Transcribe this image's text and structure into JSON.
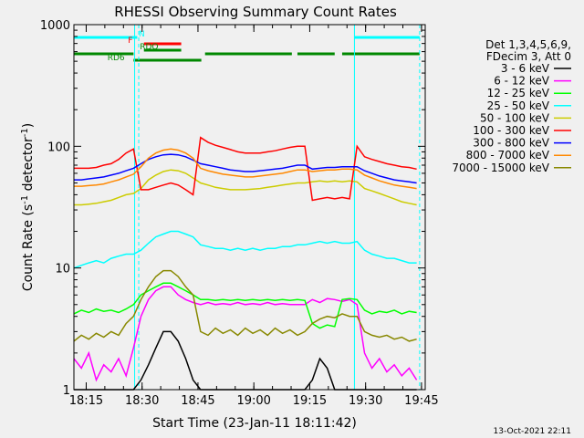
{
  "chart_data": {
    "type": "line",
    "title": "RHESSI Observing Summary Count Rates",
    "xlabel": "Start Time (23-Jan-11 18:11:42)",
    "ylabel_main": "Count Rate (s",
    "ylabel_mid": " detector",
    "ylabel_end": ")",
    "ylabel_sup": "-1",
    "y_scale": "log",
    "ylim": [
      1,
      1000
    ],
    "xlim_minutes": [
      0,
      94.3
    ],
    "x_ticks": [
      {
        "t": 3.3,
        "label": "18:15"
      },
      {
        "t": 18.3,
        "label": "18:30"
      },
      {
        "t": 33.3,
        "label": "18:45"
      },
      {
        "t": 48.3,
        "label": "19:00"
      },
      {
        "t": 63.3,
        "label": "19:15"
      },
      {
        "t": 78.3,
        "label": "19:30"
      },
      {
        "t": 93.3,
        "label": "19:45"
      }
    ],
    "y_ticks": [
      {
        "v": 1,
        "label": "1"
      },
      {
        "v": 10,
        "label": "10"
      },
      {
        "v": 100,
        "label": "100"
      },
      {
        "v": 1000,
        "label": "1000"
      }
    ],
    "legend_header": [
      "Det 1,3,4,5,6,9,",
      "FDecim 3, Att 0"
    ],
    "legend_placement": "right",
    "series": [
      {
        "name": "3 - 6 keV",
        "color": "#000000",
        "x": [
          0,
          2,
          4,
          6,
          8,
          10,
          12,
          14,
          16,
          18,
          20,
          22,
          24,
          26,
          28,
          30,
          32,
          34,
          36,
          38,
          40,
          42,
          44,
          46,
          48,
          50,
          52,
          54,
          56,
          58,
          60,
          62,
          64,
          66,
          68,
          70,
          72,
          74,
          76,
          78,
          80,
          82,
          84,
          86,
          88,
          90,
          92
        ],
        "y": [
          1,
          1,
          1,
          1,
          1,
          1,
          1,
          1,
          1,
          1.2,
          1.6,
          2.2,
          3.0,
          3.0,
          2.5,
          1.8,
          1.2,
          1.0,
          1.0,
          1.0,
          1.0,
          1.0,
          1.0,
          1.0,
          1.0,
          1.0,
          1.0,
          1.0,
          1.0,
          1.0,
          1.0,
          1.0,
          1.2,
          1.8,
          1.5,
          1.0,
          1.0,
          1.0,
          1.0,
          1.0,
          1.0,
          1.0,
          1.0,
          1.0,
          1.0,
          1.0,
          1.0
        ]
      },
      {
        "name": "6 - 12 keV",
        "color": "#ff00ff",
        "x": [
          0,
          2,
          4,
          6,
          8,
          10,
          12,
          14,
          16,
          18,
          20,
          22,
          24,
          26,
          28,
          30,
          32,
          34,
          36,
          38,
          40,
          42,
          44,
          46,
          48,
          50,
          52,
          54,
          56,
          58,
          60,
          62,
          64,
          66,
          68,
          70,
          72,
          74,
          76,
          78,
          80,
          82,
          84,
          86,
          88,
          90,
          92
        ],
        "y": [
          1.8,
          1.5,
          2.0,
          1.2,
          1.6,
          1.4,
          1.8,
          1.3,
          2.2,
          4.0,
          5.5,
          6.5,
          7.0,
          7.0,
          6.0,
          5.5,
          5.2,
          5.0,
          5.2,
          5.0,
          5.1,
          5.0,
          5.2,
          5.0,
          5.1,
          5.0,
          5.2,
          5.0,
          5.1,
          5.0,
          5.0,
          5.0,
          5.5,
          5.2,
          5.6,
          5.5,
          5.3,
          5.5,
          5.0,
          2.0,
          1.5,
          1.8,
          1.4,
          1.6,
          1.3,
          1.5,
          1.2
        ]
      },
      {
        "name": "12 - 25 keV",
        "color": "#00ff00",
        "x": [
          0,
          2,
          4,
          6,
          8,
          10,
          12,
          14,
          16,
          18,
          20,
          22,
          24,
          26,
          28,
          30,
          32,
          34,
          36,
          38,
          40,
          42,
          44,
          46,
          48,
          50,
          52,
          54,
          56,
          58,
          60,
          62,
          64,
          66,
          68,
          70,
          72,
          74,
          76,
          78,
          80,
          82,
          84,
          86,
          88,
          90,
          92
        ],
        "y": [
          4.2,
          4.5,
          4.3,
          4.6,
          4.4,
          4.5,
          4.3,
          4.6,
          5.0,
          6.0,
          6.5,
          7.0,
          7.5,
          7.5,
          7.0,
          6.5,
          6.0,
          5.5,
          5.5,
          5.4,
          5.5,
          5.4,
          5.5,
          5.4,
          5.5,
          5.4,
          5.5,
          5.4,
          5.5,
          5.4,
          5.5,
          5.4,
          3.5,
          3.2,
          3.4,
          3.3,
          5.5,
          5.6,
          5.5,
          4.5,
          4.2,
          4.4,
          4.3,
          4.5,
          4.2,
          4.4,
          4.3
        ]
      },
      {
        "name": "25 - 50 keV",
        "color": "#00ffff",
        "x": [
          0,
          2,
          4,
          6,
          8,
          10,
          12,
          14,
          16,
          18,
          20,
          22,
          24,
          26,
          28,
          30,
          32,
          34,
          36,
          38,
          40,
          42,
          44,
          46,
          48,
          50,
          52,
          54,
          56,
          58,
          60,
          62,
          64,
          66,
          68,
          70,
          72,
          74,
          76,
          78,
          80,
          82,
          84,
          86,
          88,
          90,
          92
        ],
        "y": [
          10,
          10.5,
          11,
          11.5,
          11,
          12,
          12.5,
          13,
          13,
          14,
          16,
          18,
          19,
          20,
          20,
          19,
          18,
          15.5,
          15,
          14.5,
          14.5,
          14,
          14.5,
          14,
          14.5,
          14,
          14.5,
          14.5,
          15,
          15,
          15.5,
          15.5,
          16,
          16.5,
          16,
          16.5,
          16,
          16,
          16.5,
          14,
          13,
          12.5,
          12,
          12,
          11.5,
          11,
          11
        ]
      },
      {
        "name": "50 - 100 keV",
        "color": "#cccc00",
        "x": [
          0,
          2,
          4,
          6,
          8,
          10,
          12,
          14,
          16,
          18,
          20,
          22,
          24,
          26,
          28,
          30,
          32,
          34,
          36,
          38,
          40,
          42,
          44,
          46,
          48,
          50,
          52,
          54,
          56,
          58,
          60,
          62,
          64,
          66,
          68,
          70,
          72,
          74,
          76,
          78,
          80,
          82,
          84,
          86,
          88,
          90,
          92
        ],
        "y": [
          33,
          33,
          33.5,
          34,
          35,
          36,
          38,
          40,
          41,
          45,
          53,
          58,
          62,
          64,
          63,
          60,
          55,
          50,
          48,
          46,
          45,
          44,
          44,
          44,
          44.5,
          45,
          46,
          47,
          48,
          49,
          50,
          50,
          51,
          52,
          51,
          52,
          51,
          52,
          51,
          45,
          43,
          41,
          39,
          37,
          35,
          34,
          33
        ]
      },
      {
        "name": "100 - 300 keV",
        "color": "#ff0000",
        "x": [
          0,
          2,
          4,
          6,
          8,
          10,
          12,
          14,
          16,
          18,
          20,
          22,
          24,
          26,
          28,
          30,
          32,
          34,
          36,
          38,
          40,
          42,
          44,
          46,
          48,
          50,
          52,
          54,
          56,
          58,
          60,
          62,
          64,
          66,
          68,
          70,
          72,
          74,
          76,
          78,
          80,
          82,
          84,
          86,
          88,
          90,
          92
        ],
        "y": [
          66,
          66,
          66,
          67,
          70,
          72,
          78,
          88,
          95,
          44,
          44,
          46,
          48,
          50,
          48,
          44,
          40,
          118,
          108,
          102,
          98,
          94,
          90,
          88,
          88,
          88,
          90,
          92,
          95,
          98,
          100,
          100,
          36,
          37,
          38,
          37,
          38,
          37,
          100,
          82,
          78,
          75,
          72,
          70,
          68,
          67,
          65
        ]
      },
      {
        "name": "300 - 800 keV",
        "color": "#0000ff",
        "x": [
          0,
          2,
          4,
          6,
          8,
          10,
          12,
          14,
          16,
          18,
          20,
          22,
          24,
          26,
          28,
          30,
          32,
          34,
          36,
          38,
          40,
          42,
          44,
          46,
          48,
          50,
          52,
          54,
          56,
          58,
          60,
          62,
          64,
          66,
          68,
          70,
          72,
          74,
          76,
          78,
          80,
          82,
          84,
          86,
          88,
          90,
          92
        ],
        "y": [
          53,
          53,
          54,
          55,
          56,
          58,
          60,
          63,
          66,
          72,
          78,
          82,
          85,
          86,
          85,
          82,
          77,
          72,
          70,
          68,
          66,
          64,
          63,
          62,
          62,
          63,
          64,
          65,
          66,
          68,
          70,
          70,
          65,
          66,
          67,
          67,
          68,
          68,
          68,
          63,
          60,
          57,
          55,
          53,
          52,
          51,
          50
        ]
      },
      {
        "name": "800 - 7000 keV",
        "color": "#ff8800",
        "x": [
          0,
          2,
          4,
          6,
          8,
          10,
          12,
          14,
          16,
          18,
          20,
          22,
          24,
          26,
          28,
          30,
          32,
          34,
          36,
          38,
          40,
          42,
          44,
          46,
          48,
          50,
          52,
          54,
          56,
          58,
          60,
          62,
          64,
          66,
          68,
          70,
          72,
          74,
          76,
          78,
          80,
          82,
          84,
          86,
          88,
          90,
          92
        ],
        "y": [
          47,
          47,
          47.5,
          48,
          49,
          51,
          53,
          56,
          59,
          68,
          80,
          88,
          93,
          95,
          93,
          88,
          80,
          66,
          63,
          61,
          59,
          58,
          57,
          56,
          56,
          57,
          58,
          59,
          60,
          62,
          64,
          64,
          62,
          63,
          64,
          64,
          65,
          65,
          64,
          58,
          55,
          52,
          50,
          48,
          47,
          46,
          45
        ]
      },
      {
        "name": "7000 - 15000 keV",
        "color": "#888800",
        "x": [
          0,
          2,
          4,
          6,
          8,
          10,
          12,
          14,
          16,
          18,
          20,
          22,
          24,
          26,
          28,
          30,
          32,
          34,
          36,
          38,
          40,
          42,
          44,
          46,
          48,
          50,
          52,
          54,
          56,
          58,
          60,
          62,
          64,
          66,
          68,
          70,
          72,
          74,
          76,
          78,
          80,
          82,
          84,
          86,
          88,
          90,
          92
        ],
        "y": [
          2.5,
          2.8,
          2.6,
          2.9,
          2.7,
          3.0,
          2.8,
          3.5,
          4.0,
          5.5,
          7.0,
          8.5,
          9.5,
          9.5,
          8.5,
          7.0,
          6.0,
          3.0,
          2.8,
          3.2,
          2.9,
          3.1,
          2.8,
          3.2,
          2.9,
          3.1,
          2.8,
          3.2,
          2.9,
          3.1,
          2.8,
          3.0,
          3.5,
          3.8,
          4.0,
          3.9,
          4.2,
          4.0,
          4.0,
          3.0,
          2.8,
          2.7,
          2.8,
          2.6,
          2.7,
          2.5,
          2.6
        ]
      }
    ],
    "vlines": [
      {
        "t": 0.0,
        "style": "solid",
        "color": "#00ffff"
      },
      {
        "t": 16.3,
        "style": "solid",
        "color": "#00ffff"
      },
      {
        "t": 17.4,
        "style": "dashed",
        "color": "#00ffff"
      },
      {
        "t": 75.3,
        "style": "solid",
        "color": "#00ffff"
      },
      {
        "t": 92.8,
        "style": "dashed",
        "color": "#00ffff"
      }
    ],
    "flag_bars": [
      {
        "row": "N",
        "color": "#00ffff",
        "segments": [
          [
            0.0,
            17.0
          ],
          [
            75.3,
            92.8
          ]
        ]
      },
      {
        "row": "F",
        "color": "#ff0000",
        "segments": [
          [
            18.8,
            28.8
          ]
        ]
      },
      {
        "row": "RDO",
        "color": "#008800",
        "segments": [
          [
            18.8,
            28.8
          ]
        ]
      },
      {
        "row": "RD6",
        "color": "#008800",
        "segments": [
          [
            0.0,
            16.0
          ],
          [
            16.0,
            34.2
          ],
          [
            35.2,
            58.5
          ],
          [
            60.0,
            70.0
          ],
          [
            72.0,
            92.8
          ]
        ]
      }
    ],
    "flag_labels": [
      {
        "text": "N",
        "t": 17.4,
        "row": "N",
        "color": "#00ffff"
      },
      {
        "text": "F",
        "t": 14.5,
        "row": "F",
        "color": "#ff0000"
      },
      {
        "text": "RDO",
        "t": 17.7,
        "row": "RDO",
        "color": "#008800"
      },
      {
        "text": "RD6",
        "t": 9.0,
        "row": "RD6b",
        "color": "#008800"
      }
    ],
    "footer_date": "13-Oct-2021 22:11"
  }
}
